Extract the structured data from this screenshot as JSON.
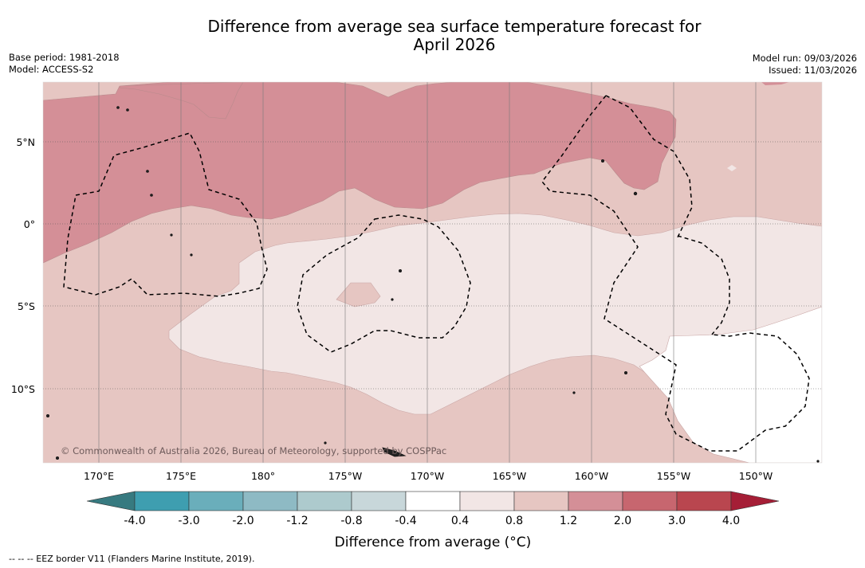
{
  "title": {
    "line1": "Difference from average sea surface temperature forecast for",
    "line2": "April 2026"
  },
  "meta_left": {
    "base_period": "Base period: 1981-2018",
    "model": "Model: ACCESS-S2"
  },
  "meta_right": {
    "model_run": "Model run: 09/03/2026",
    "issued": "Issued: 11/03/2026"
  },
  "map": {
    "lat_labels": [
      "5°N",
      "0°",
      "5°S",
      "10°S"
    ],
    "lon_labels": [
      "170°E",
      "175°E",
      "180°",
      "175°W",
      "170°W",
      "165°W",
      "160°W",
      "155°W",
      "150°W"
    ],
    "copyright": "© Commonwealth of Australia 2026, Bureau of Meteorology, supported by COSPPac"
  },
  "colorbar": {
    "tick_labels": [
      "-4.0",
      "-3.0",
      "-2.0",
      "-1.2",
      "-0.8",
      "-0.4",
      "0.4",
      "0.8",
      "1.2",
      "2.0",
      "3.0",
      "4.0"
    ],
    "colors": [
      "#3e9eb0",
      "#6aaebb",
      "#8ebac4",
      "#adcacd",
      "#c8d7da",
      "#ffffff",
      "#f2e6e5",
      "#e6c6c2",
      "#d48f97",
      "#c7666f",
      "#b9464f"
    ],
    "extend_low_color": "#377a80",
    "extend_high_color": "#a51e36",
    "label": "Difference from average (°C)"
  },
  "footer": {
    "eez_note": "--  --  -- EEZ border V11 (Flanders Marine Institute, 2019)."
  }
}
